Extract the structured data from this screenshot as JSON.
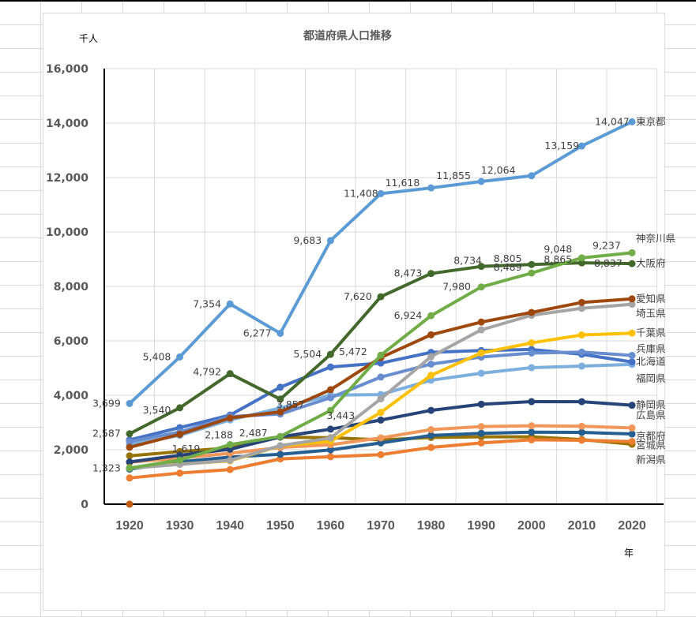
{
  "chart_data": {
    "type": "line",
    "title": "都道府県人口推移",
    "ylabel": "千人",
    "xlabel": "年",
    "ylim": [
      0,
      16000
    ],
    "yticks": [
      "0",
      "2,000",
      "4,000",
      "6,000",
      "8,000",
      "10,000",
      "12,000",
      "14,000",
      "16,000"
    ],
    "ytick_values": [
      0,
      2000,
      4000,
      6000,
      8000,
      10000,
      12000,
      14000,
      16000
    ],
    "categories": [
      "1920",
      "1930",
      "1940",
      "1950",
      "1960",
      "1970",
      "1980",
      "1990",
      "2000",
      "2010",
      "2020"
    ],
    "grid": true,
    "legend": "inline-right",
    "series": [
      {
        "name": "東京都",
        "color": "#5B9BD5",
        "values": [
          3699,
          5408,
          7354,
          6277,
          9683,
          11408,
          11618,
          11855,
          12064,
          13159,
          14047
        ],
        "labels": [
          "3,699",
          "5,408",
          "7,354",
          "6,277",
          "9,683",
          "11,408",
          "11,618",
          "11,855",
          "12,064",
          "13,159",
          "14,047"
        ]
      },
      {
        "name": "神奈川県",
        "color": "#70AD47",
        "values": [
          1323,
          1619,
          2188,
          2487,
          3443,
          5472,
          6924,
          7980,
          8489,
          9048,
          9237
        ],
        "labels": [
          "1,323",
          "1,619",
          "2,188",
          "2,487",
          "3,443",
          "5,472",
          "6,924",
          "7,980",
          "8,489",
          "9,048",
          "9,237"
        ]
      },
      {
        "name": "大阪府",
        "color": "#43682B",
        "values": [
          2587,
          3540,
          4792,
          3857,
          5504,
          7620,
          8473,
          8734,
          8805,
          8865,
          8837
        ],
        "labels": [
          "2,587",
          "3,540",
          "4,792",
          "3,857",
          "5,504",
          "7,620",
          "8,473",
          "8,734",
          "8,805",
          "8,865",
          "8,837"
        ]
      },
      {
        "name": "愛知県",
        "color": "#9E480E",
        "values": [
          2090,
          2567,
          3166,
          3390,
          4206,
          5386,
          6222,
          6691,
          7043,
          7411,
          7542
        ]
      },
      {
        "name": "埼玉県",
        "color": "#A5A5A5",
        "values": [
          1320,
          1460,
          1610,
          2150,
          2430,
          3870,
          5420,
          6405,
          6938,
          7195,
          7345
        ]
      },
      {
        "name": "千葉県",
        "color": "#FFC000",
        "values": [
          1340,
          1470,
          1590,
          2140,
          2310,
          3370,
          4735,
          5555,
          5926,
          6216,
          6284
        ]
      },
      {
        "name": "兵庫県",
        "color": "#698ED0",
        "values": [
          2300,
          2650,
          3220,
          3310,
          3910,
          4670,
          5145,
          5405,
          5551,
          5588,
          5465
        ]
      },
      {
        "name": "北海道",
        "color": "#4472C4",
        "values": [
          2359,
          2812,
          3273,
          4296,
          5039,
          5184,
          5576,
          5644,
          5683,
          5506,
          5225
        ]
      },
      {
        "name": "福岡県",
        "color": "#7CAFDD",
        "values": [
          2188,
          2527,
          3094,
          3530,
          4007,
          4027,
          4553,
          4811,
          5016,
          5072,
          5135
        ]
      },
      {
        "name": "静岡県",
        "color": "#264478",
        "values": [
          1550,
          1798,
          2018,
          2471,
          2756,
          3090,
          3447,
          3671,
          3767,
          3765,
          3633
        ]
      },
      {
        "name": "広島県",
        "color": "#F1975A",
        "values": [
          1541,
          1692,
          1870,
          2082,
          2184,
          2436,
          2739,
          2850,
          2879,
          2861,
          2800
        ]
      },
      {
        "name": "京都府",
        "color": "#255E91",
        "values": [
          1287,
          1553,
          1730,
          1833,
          1993,
          2250,
          2527,
          2602,
          2644,
          2636,
          2578
        ]
      },
      {
        "name": "宮城県",
        "color": "#ED7D31",
        "values": [
          962,
          1143,
          1271,
          1663,
          1743,
          1819,
          2082,
          2249,
          2365,
          2348,
          2302
        ]
      },
      {
        "name": "新潟県",
        "color": "#997300",
        "values": [
          1776,
          1933,
          2064,
          2461,
          2442,
          2361,
          2451,
          2475,
          2476,
          2374,
          2201
        ]
      },
      {
        "name": "",
        "color": "#C55A11",
        "values": [
          0,
          null,
          null,
          null,
          null,
          null,
          null,
          null,
          null,
          null,
          null
        ]
      }
    ],
    "end_labels": [
      {
        "name": "東京都",
        "value": 14047
      },
      {
        "name": "神奈川県",
        "value": 9237
      },
      {
        "name": "大阪府",
        "value": 8837
      },
      {
        "name": "愛知県",
        "value": 7542
      },
      {
        "name": "埼玉県",
        "value": 7345
      },
      {
        "name": "千葉県",
        "value": 6284
      },
      {
        "name": "兵庫県",
        "value": 5465
      },
      {
        "name": "北海道",
        "value": 5225
      },
      {
        "name": "福岡県",
        "value": 5135
      },
      {
        "name": "静岡県",
        "value": 3633
      },
      {
        "name": "広島県",
        "value": 2800
      },
      {
        "name": "京都府",
        "value": 2578
      },
      {
        "name": "宮城県",
        "value": 2302
      },
      {
        "name": "新潟県",
        "value": 2201
      }
    ]
  }
}
